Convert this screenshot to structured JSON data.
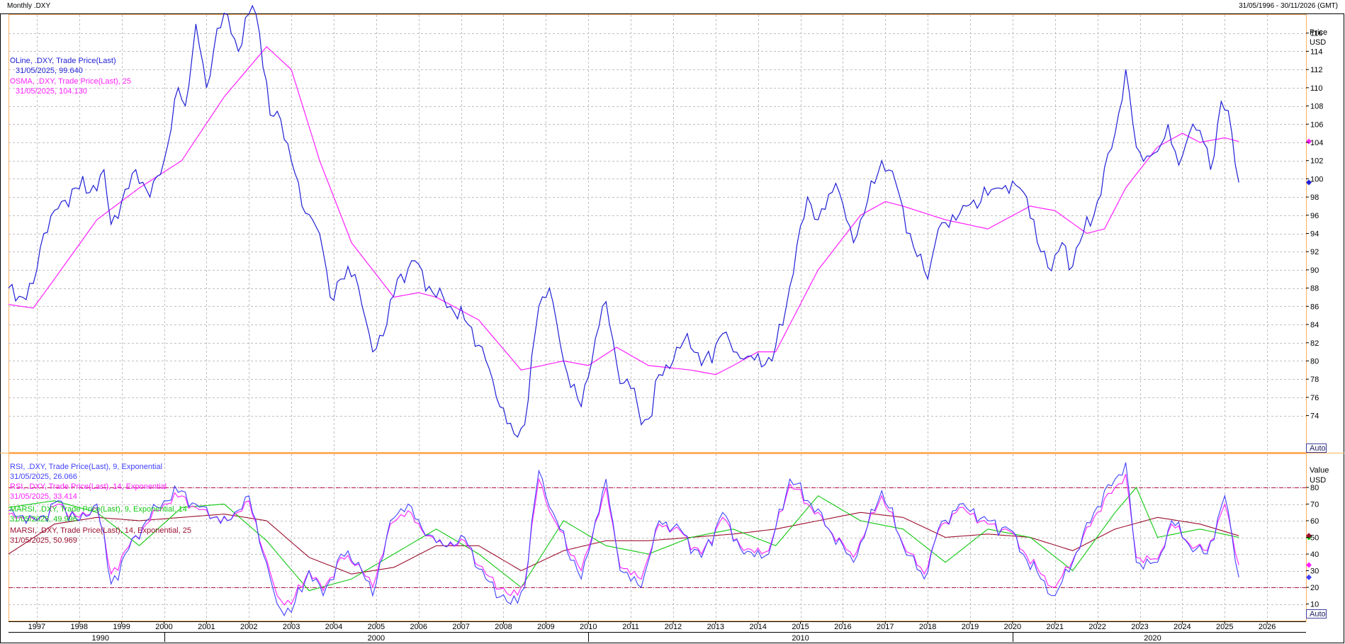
{
  "header": {
    "title": "Monthly .DXY",
    "date_range": "31/05/1996 - 30/11/2026 (GMT)"
  },
  "colors": {
    "price": "#1f1fd6",
    "sma": "#ff1fff",
    "rsi9": "#4040ff",
    "rsi14": "#ff1fff",
    "marsi9": "#10c810",
    "marsi14": "#9b1030",
    "threshold": "#b01040",
    "grid": "#c0c0c0",
    "frame": "#ffb060"
  },
  "price_pane": {
    "axis_title": "Price",
    "axis_unit": "USD",
    "auto_label": "Auto",
    "ylim": [
      70,
      118
    ],
    "yticks": [
      "74",
      "76",
      "78",
      "80",
      "82",
      "84",
      "86",
      "88",
      "90",
      "92",
      "94",
      "96",
      "98",
      "100",
      "102",
      "104",
      "106",
      "108",
      "110",
      "112",
      "114",
      "116"
    ],
    "legend": [
      {
        "label": "Line, .DXY, Trade Price(Last)",
        "value": "31/05/2025, 99.640"
      },
      {
        "label": "SMA, .DXY, Trade Price(Last),  25",
        "value": "31/05/2025, 104.130"
      }
    ]
  },
  "rsi_pane": {
    "axis_title": "Value",
    "axis_unit": "USD",
    "auto_label": "Auto",
    "ylim": [
      0,
      100
    ],
    "yticks": [
      "10",
      "20",
      "30",
      "40",
      "50",
      "60",
      "70",
      "80"
    ],
    "thresholds": [
      80,
      20
    ],
    "legend": [
      {
        "label": "RSI, .DXY, Trade Price(Last),  9, Exponential",
        "value": "31/05/2025, 26.066"
      },
      {
        "label": "RSI, .DXY, Trade Price(Last),  14, Exponential",
        "value": "31/05/2025, 33.414"
      },
      {
        "label": "MARSI, .DXY, Trade Price(Last),  9, Exponential, 14",
        "value": "31/05/2025, 49.996"
      },
      {
        "label": "MARSI, .DXY, Trade Price(Last),  14, Exponential, 25",
        "value": "31/05/2025, 50.969"
      }
    ]
  },
  "x_axis": {
    "years": [
      "1997",
      "1998",
      "1999",
      "2000",
      "2001",
      "2002",
      "2003",
      "2004",
      "2005",
      "2006",
      "2007",
      "2008",
      "2009",
      "2010",
      "2011",
      "2012",
      "2013",
      "2014",
      "2015",
      "2016",
      "2017",
      "2018",
      "2019",
      "2020",
      "2021",
      "2022",
      "2023",
      "2024",
      "2025",
      "2026"
    ],
    "decades": [
      "1990",
      "2000",
      "2010",
      "2020"
    ]
  },
  "chart_data": {
    "type": "line",
    "x_start": "1996-05",
    "x_step": "month",
    "price_anchors": [
      [
        "1996-05",
        88.0
      ],
      [
        "1996-09",
        87.0
      ],
      [
        "1996-12",
        88.5
      ],
      [
        "1997-03",
        94.0
      ],
      [
        "1997-08",
        97.5
      ],
      [
        "1997-12",
        99.0
      ],
      [
        "1998-04",
        98.5
      ],
      [
        "1998-08",
        101.0
      ],
      [
        "1998-10",
        95.0
      ],
      [
        "1999-01",
        97.5
      ],
      [
        "1999-05",
        101.0
      ],
      [
        "1999-09",
        98.0
      ],
      [
        "2000-01",
        102.0
      ],
      [
        "2000-05",
        110.0
      ],
      [
        "2000-07",
        108.0
      ],
      [
        "2000-10",
        117.0
      ],
      [
        "2001-01",
        110.0
      ],
      [
        "2001-04",
        116.5
      ],
      [
        "2001-07",
        118.0
      ],
      [
        "2001-10",
        114.0
      ],
      [
        "2002-02",
        119.0
      ],
      [
        "2002-04",
        116.0
      ],
      [
        "2002-07",
        107.0
      ],
      [
        "2002-10",
        106.5
      ],
      [
        "2003-01",
        102.0
      ],
      [
        "2003-04",
        97.0
      ],
      [
        "2003-07",
        95.5
      ],
      [
        "2003-10",
        92.0
      ],
      [
        "2003-12",
        87.0
      ],
      [
        "2004-03",
        89.0
      ],
      [
        "2004-07",
        89.5
      ],
      [
        "2004-11",
        83.0
      ],
      [
        "2004-12",
        81.0
      ],
      [
        "2005-04",
        84.0
      ],
      [
        "2005-07",
        89.0
      ],
      [
        "2005-12",
        91.0
      ],
      [
        "2006-05",
        87.5
      ],
      [
        "2006-10",
        86.0
      ],
      [
        "2007-03",
        84.0
      ],
      [
        "2007-07",
        81.5
      ],
      [
        "2007-11",
        76.0
      ],
      [
        "2008-04",
        72.0
      ],
      [
        "2008-07",
        73.0
      ],
      [
        "2008-11",
        86.0
      ],
      [
        "2009-02",
        88.0
      ],
      [
        "2009-06",
        80.0
      ],
      [
        "2009-11",
        75.0
      ],
      [
        "2010-05",
        86.0
      ],
      [
        "2010-06",
        86.5
      ],
      [
        "2010-10",
        77.5
      ],
      [
        "2011-02",
        77.0
      ],
      [
        "2011-04",
        73.0
      ],
      [
        "2011-07",
        74.0
      ],
      [
        "2011-09",
        78.5
      ],
      [
        "2012-01",
        80.0
      ],
      [
        "2012-05",
        83.0
      ],
      [
        "2012-09",
        79.5
      ],
      [
        "2013-03",
        83.0
      ],
      [
        "2013-06",
        81.0
      ],
      [
        "2013-10",
        80.5
      ],
      [
        "2014-05",
        80.0
      ],
      [
        "2014-09",
        86.0
      ],
      [
        "2015-03",
        98.0
      ],
      [
        "2015-06",
        95.5
      ],
      [
        "2015-11",
        99.5
      ],
      [
        "2016-04",
        93.0
      ],
      [
        "2016-12",
        102.0
      ],
      [
        "2017-04",
        99.5
      ],
      [
        "2017-09",
        92.5
      ],
      [
        "2018-01",
        89.0
      ],
      [
        "2018-04",
        94.5
      ],
      [
        "2018-12",
        97.0
      ],
      [
        "2019-09",
        99.0
      ],
      [
        "2020-03",
        99.0
      ],
      [
        "2020-05",
        98.0
      ],
      [
        "2020-08",
        93.0
      ],
      [
        "2020-12",
        89.9
      ],
      [
        "2021-03",
        93.0
      ],
      [
        "2021-05",
        90.0
      ],
      [
        "2021-08",
        93.0
      ],
      [
        "2021-12",
        96.0
      ],
      [
        "2022-06",
        105.0
      ],
      [
        "2022-09",
        112.0
      ],
      [
        "2022-12",
        103.5
      ],
      [
        "2023-03",
        102.5
      ],
      [
        "2023-06",
        103.0
      ],
      [
        "2023-09",
        106.0
      ],
      [
        "2023-12",
        101.5
      ],
      [
        "2024-04",
        106.0
      ],
      [
        "2024-07",
        104.0
      ],
      [
        "2024-09",
        101.0
      ],
      [
        "2024-12",
        108.5
      ],
      [
        "2025-02",
        107.5
      ],
      [
        "2025-05",
        99.6
      ]
    ],
    "sma_anchors": [
      [
        "1996-05",
        86.2
      ],
      [
        "1996-12",
        85.8
      ],
      [
        "1997-06",
        89.0
      ],
      [
        "1998-06",
        95.5
      ],
      [
        "1999-06",
        99.0
      ],
      [
        "2000-06",
        102.0
      ],
      [
        "2001-06",
        109.0
      ],
      [
        "2002-06",
        114.5
      ],
      [
        "2003-01",
        112.0
      ],
      [
        "2003-09",
        102.0
      ],
      [
        "2004-06",
        93.0
      ],
      [
        "2005-06",
        87.0
      ],
      [
        "2006-01",
        87.5
      ],
      [
        "2006-06",
        87.0
      ],
      [
        "2007-06",
        84.5
      ],
      [
        "2008-06",
        79.0
      ],
      [
        "2009-06",
        80.0
      ],
      [
        "2010-01",
        79.5
      ],
      [
        "2010-09",
        81.5
      ],
      [
        "2011-06",
        79.5
      ],
      [
        "2012-06",
        79.0
      ],
      [
        "2013-01",
        78.5
      ],
      [
        "2013-06",
        79.5
      ],
      [
        "2014-01",
        81.0
      ],
      [
        "2014-06",
        81.0
      ],
      [
        "2015-06",
        90.0
      ],
      [
        "2016-06",
        96.0
      ],
      [
        "2017-01",
        97.5
      ],
      [
        "2017-06",
        97.0
      ],
      [
        "2018-06",
        95.5
      ],
      [
        "2019-06",
        94.5
      ],
      [
        "2020-06",
        97.0
      ],
      [
        "2021-01",
        96.5
      ],
      [
        "2021-10",
        94.0
      ],
      [
        "2022-03",
        94.5
      ],
      [
        "2022-09",
        99.0
      ],
      [
        "2023-06",
        103.5
      ],
      [
        "2024-01",
        105.0
      ],
      [
        "2024-06",
        104.0
      ],
      [
        "2025-01",
        104.5
      ],
      [
        "2025-05",
        104.1
      ]
    ],
    "rsi9_anchors": [
      [
        "1996-05",
        66
      ],
      [
        "1997-01",
        60
      ],
      [
        "1997-07",
        72
      ],
      [
        "1998-01",
        60
      ],
      [
        "1998-06",
        70
      ],
      [
        "1998-10",
        22
      ],
      [
        "1999-02",
        40
      ],
      [
        "1999-08",
        60
      ],
      [
        "2000-01",
        72
      ],
      [
        "2000-06",
        78
      ],
      [
        "2000-10",
        70
      ],
      [
        "2001-03",
        62
      ],
      [
        "2001-07",
        60
      ],
      [
        "2002-01",
        75
      ],
      [
        "2002-05",
        40
      ],
      [
        "2002-09",
        10
      ],
      [
        "2003-01",
        5
      ],
      [
        "2003-06",
        30
      ],
      [
        "2003-10",
        15
      ],
      [
        "2004-03",
        40
      ],
      [
        "2004-08",
        35
      ],
      [
        "2004-12",
        15
      ],
      [
        "2005-05",
        60
      ],
      [
        "2005-10",
        70
      ],
      [
        "2006-02",
        55
      ],
      [
        "2006-08",
        45
      ],
      [
        "2007-02",
        50
      ],
      [
        "2007-08",
        25
      ],
      [
        "2008-03",
        10
      ],
      [
        "2008-07",
        20
      ],
      [
        "2008-11",
        90
      ],
      [
        "2009-03",
        65
      ],
      [
        "2009-11",
        25
      ],
      [
        "2010-06",
        85
      ],
      [
        "2010-10",
        30
      ],
      [
        "2011-04",
        20
      ],
      [
        "2011-09",
        60
      ],
      [
        "2012-03",
        55
      ],
      [
        "2012-09",
        38
      ],
      [
        "2013-03",
        65
      ],
      [
        "2013-09",
        40
      ],
      [
        "2014-04",
        40
      ],
      [
        "2014-10",
        85
      ],
      [
        "2015-04",
        70
      ],
      [
        "2015-09",
        55
      ],
      [
        "2016-04",
        35
      ],
      [
        "2016-12",
        78
      ],
      [
        "2017-06",
        45
      ],
      [
        "2017-12",
        25
      ],
      [
        "2018-04",
        55
      ],
      [
        "2018-10",
        70
      ],
      [
        "2019-06",
        60
      ],
      [
        "2019-12",
        55
      ],
      [
        "2020-04",
        40
      ],
      [
        "2020-09",
        25
      ],
      [
        "2021-01",
        15
      ],
      [
        "2021-06",
        35
      ],
      [
        "2021-12",
        65
      ],
      [
        "2022-06",
        85
      ],
      [
        "2022-09",
        95
      ],
      [
        "2022-12",
        35
      ],
      [
        "2023-06",
        35
      ],
      [
        "2023-10",
        60
      ],
      [
        "2024-03",
        45
      ],
      [
        "2024-08",
        40
      ],
      [
        "2025-01",
        75
      ],
      [
        "2025-05",
        26
      ]
    ],
    "rsi14_anchors": [
      [
        "1996-05",
        64
      ],
      [
        "1997-01",
        60
      ],
      [
        "1997-07",
        70
      ],
      [
        "1998-01",
        62
      ],
      [
        "1998-06",
        68
      ],
      [
        "1998-10",
        28
      ],
      [
        "1999-02",
        42
      ],
      [
        "1999-08",
        58
      ],
      [
        "2000-01",
        70
      ],
      [
        "2000-06",
        75
      ],
      [
        "2000-10",
        68
      ],
      [
        "2001-03",
        62
      ],
      [
        "2001-07",
        60
      ],
      [
        "2002-01",
        72
      ],
      [
        "2002-05",
        42
      ],
      [
        "2002-09",
        15
      ],
      [
        "2003-01",
        10
      ],
      [
        "2003-06",
        30
      ],
      [
        "2003-10",
        18
      ],
      [
        "2004-03",
        38
      ],
      [
        "2004-08",
        34
      ],
      [
        "2004-12",
        20
      ],
      [
        "2005-05",
        58
      ],
      [
        "2005-10",
        66
      ],
      [
        "2006-02",
        54
      ],
      [
        "2006-08",
        45
      ],
      [
        "2007-02",
        48
      ],
      [
        "2007-08",
        28
      ],
      [
        "2008-03",
        15
      ],
      [
        "2008-07",
        22
      ],
      [
        "2008-11",
        85
      ],
      [
        "2009-03",
        62
      ],
      [
        "2009-11",
        30
      ],
      [
        "2010-06",
        80
      ],
      [
        "2010-10",
        32
      ],
      [
        "2011-04",
        25
      ],
      [
        "2011-09",
        58
      ],
      [
        "2012-03",
        54
      ],
      [
        "2012-09",
        40
      ],
      [
        "2013-03",
        62
      ],
      [
        "2013-09",
        42
      ],
      [
        "2014-04",
        42
      ],
      [
        "2014-10",
        82
      ],
      [
        "2015-04",
        68
      ],
      [
        "2015-09",
        55
      ],
      [
        "2016-04",
        38
      ],
      [
        "2016-12",
        75
      ],
      [
        "2017-06",
        46
      ],
      [
        "2017-12",
        28
      ],
      [
        "2018-04",
        54
      ],
      [
        "2018-10",
        68
      ],
      [
        "2019-06",
        58
      ],
      [
        "2019-12",
        54
      ],
      [
        "2020-04",
        42
      ],
      [
        "2020-09",
        28
      ],
      [
        "2021-01",
        20
      ],
      [
        "2021-06",
        36
      ],
      [
        "2021-12",
        62
      ],
      [
        "2022-06",
        80
      ],
      [
        "2022-09",
        88
      ],
      [
        "2022-12",
        38
      ],
      [
        "2023-06",
        37
      ],
      [
        "2023-10",
        58
      ],
      [
        "2024-03",
        46
      ],
      [
        "2024-08",
        42
      ],
      [
        "2025-01",
        70
      ],
      [
        "2025-05",
        33.4
      ]
    ],
    "marsi9_anchors": [
      [
        "1996-05",
        68
      ],
      [
        "1997-06",
        72
      ],
      [
        "1998-06",
        65
      ],
      [
        "1999-06",
        45
      ],
      [
        "2000-06",
        68
      ],
      [
        "2001-06",
        70
      ],
      [
        "2002-06",
        48
      ],
      [
        "2003-06",
        18
      ],
      [
        "2004-06",
        25
      ],
      [
        "2005-06",
        40
      ],
      [
        "2006-06",
        55
      ],
      [
        "2007-06",
        40
      ],
      [
        "2008-06",
        20
      ],
      [
        "2009-06",
        60
      ],
      [
        "2010-06",
        45
      ],
      [
        "2011-06",
        40
      ],
      [
        "2012-06",
        50
      ],
      [
        "2013-06",
        55
      ],
      [
        "2014-06",
        45
      ],
      [
        "2015-06",
        75
      ],
      [
        "2016-06",
        60
      ],
      [
        "2017-06",
        55
      ],
      [
        "2018-06",
        35
      ],
      [
        "2019-06",
        55
      ],
      [
        "2020-06",
        50
      ],
      [
        "2021-06",
        30
      ],
      [
        "2022-06",
        65
      ],
      [
        "2022-12",
        80
      ],
      [
        "2023-06",
        50
      ],
      [
        "2024-06",
        55
      ],
      [
        "2025-05",
        50
      ]
    ],
    "marsi14_anchors": [
      [
        "1996-05",
        40
      ],
      [
        "1997-06",
        58
      ],
      [
        "1998-06",
        62
      ],
      [
        "1999-06",
        60
      ],
      [
        "2000-06",
        62
      ],
      [
        "2001-06",
        64
      ],
      [
        "2002-06",
        60
      ],
      [
        "2003-06",
        38
      ],
      [
        "2004-06",
        28
      ],
      [
        "2005-06",
        32
      ],
      [
        "2006-06",
        45
      ],
      [
        "2007-06",
        45
      ],
      [
        "2008-06",
        30
      ],
      [
        "2009-06",
        42
      ],
      [
        "2010-06",
        48
      ],
      [
        "2011-06",
        48
      ],
      [
        "2012-06",
        50
      ],
      [
        "2013-06",
        52
      ],
      [
        "2014-06",
        55
      ],
      [
        "2015-06",
        60
      ],
      [
        "2016-06",
        65
      ],
      [
        "2017-06",
        62
      ],
      [
        "2018-06",
        50
      ],
      [
        "2019-06",
        52
      ],
      [
        "2020-06",
        50
      ],
      [
        "2021-06",
        42
      ],
      [
        "2022-06",
        55
      ],
      [
        "2023-06",
        62
      ],
      [
        "2024-06",
        58
      ],
      [
        "2025-05",
        51
      ]
    ]
  }
}
